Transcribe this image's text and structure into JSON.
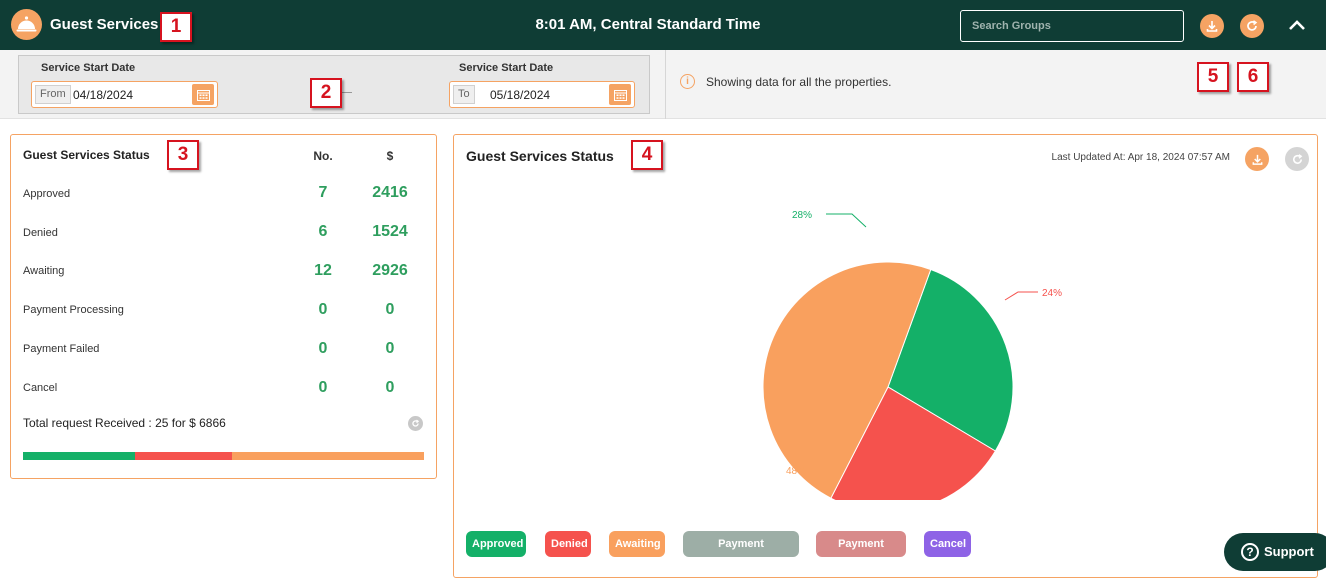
{
  "header": {
    "title": "Guest Services",
    "clock": "8:01 AM, Central Standard Time",
    "search_placeholder": "Search Groups",
    "bg_color": "#0f3d35",
    "accent_color": "#f5a363"
  },
  "filters": {
    "start_label": "Service Start Date",
    "start_prefix": "From",
    "start_value": "04/18/2024",
    "end_label": "Service Start Date",
    "end_prefix": "To",
    "end_value": "05/18/2024",
    "info_text": "Showing data for all the properties."
  },
  "markers": [
    "1",
    "2",
    "3",
    "4",
    "5",
    "6"
  ],
  "status_panel": {
    "title": "Guest Services Status",
    "col_no": "No.",
    "col_amount": "$",
    "rows": [
      {
        "label": "Approved",
        "no": "7",
        "amount": "2416"
      },
      {
        "label": "Denied",
        "no": "6",
        "amount": "1524"
      },
      {
        "label": "Awaiting",
        "no": "12",
        "amount": "2926"
      },
      {
        "label": "Payment Processing",
        "no": "0",
        "amount": "0"
      },
      {
        "label": "Payment Failed",
        "no": "0",
        "amount": "0"
      },
      {
        "label": "Cancel",
        "no": "0",
        "amount": "0"
      }
    ],
    "total_text": "Total request Received : 25 for $ 6866",
    "progress": [
      {
        "name": "Approved",
        "fraction": 0.28,
        "color": "#14b068"
      },
      {
        "name": "Denied",
        "fraction": 0.24,
        "color": "#f5524d"
      },
      {
        "name": "Awaiting",
        "fraction": 0.48,
        "color": "#f9a05e"
      }
    ]
  },
  "chart_panel": {
    "title": "Guest Services Status",
    "last_updated": "Last Updated At: Apr 18, 2024 07:57 AM"
  },
  "chart_data": {
    "type": "pie",
    "slices": [
      {
        "label": "Approved",
        "value": 28,
        "color": "#14b068",
        "label_text": "28%"
      },
      {
        "label": "Denied",
        "value": 24,
        "color": "#f5524d",
        "label_text": "24%"
      },
      {
        "label": "Awaiting",
        "value": 48,
        "color": "#f9a05e",
        "label_text": "48%"
      }
    ],
    "legend": [
      {
        "label": "Approved",
        "color": "#14b068"
      },
      {
        "label": "Denied",
        "color": "#f5524d"
      },
      {
        "label": "Awaiting",
        "color": "#f9a05e"
      },
      {
        "label": "Payment Processing",
        "color": "#9daea6"
      },
      {
        "label": "Payment Failed",
        "color": "#d88a8a"
      },
      {
        "label": "Cancel",
        "color": "#8e63e6"
      }
    ],
    "legend_position": "bottom-left"
  },
  "support": {
    "label": "Support"
  }
}
